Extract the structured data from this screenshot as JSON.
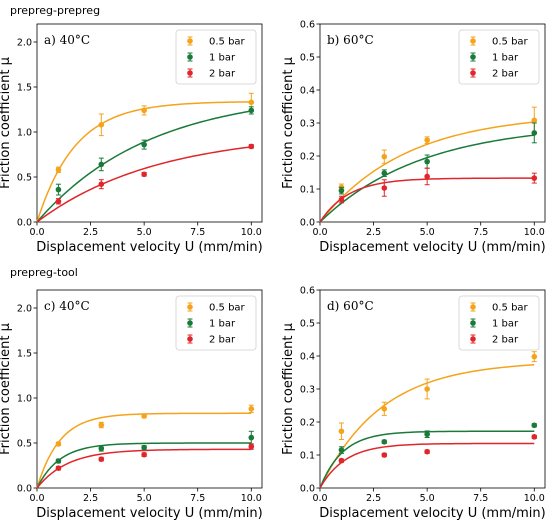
{
  "section_labels": [
    "prepreg-prepreg",
    "prepreg-tool"
  ],
  "chart_data": [
    {
      "type": "scatter",
      "panel_label": "a) 40°C",
      "xlabel": "Displacement velocity U (mm/min)",
      "ylabel": "Friction coefficient μ",
      "xlim": [
        0,
        10.5
      ],
      "ylim": [
        0,
        2.2
      ],
      "xticks": [
        "0.0",
        "2.5",
        "5.0",
        "7.5",
        "10.0"
      ],
      "yticks": [
        "0.0",
        "0.5",
        "1.0",
        "1.5",
        "2.0"
      ],
      "legend_position": "top-right",
      "series": [
        {
          "name": "0.5 bar",
          "color": "#f5a31a",
          "x": [
            1,
            3,
            5,
            10
          ],
          "y": [
            0.58,
            1.08,
            1.24,
            1.33
          ],
          "err": [
            0.03,
            0.12,
            0.05,
            0.1
          ],
          "fit_asymptote": 1.34,
          "fit_rate": 0.56
        },
        {
          "name": "1 bar",
          "color": "#1a7a3a",
          "x": [
            1,
            3,
            5,
            10
          ],
          "y": [
            0.36,
            0.64,
            0.86,
            1.24
          ],
          "err": [
            0.06,
            0.07,
            0.05,
            0.04
          ],
          "fit_asymptote": 1.45,
          "fit_rate": 0.19
        },
        {
          "name": "2 bar",
          "color": "#e0262a",
          "x": [
            1,
            3,
            5,
            10
          ],
          "y": [
            0.23,
            0.42,
            0.53,
            0.84
          ],
          "err": [
            0.03,
            0.05,
            0.02,
            0.02
          ],
          "fit_asymptote": 1.0,
          "fit_rate": 0.18
        }
      ]
    },
    {
      "type": "scatter",
      "panel_label": "b) 60°C",
      "xlabel": "Displacement velocity U (mm/min)",
      "ylabel": "Friction coefficient μ",
      "xlim": [
        0,
        10.5
      ],
      "ylim": [
        0,
        0.6
      ],
      "xticks": [
        "0.0",
        "2.5",
        "5.0",
        "7.5",
        "10.0"
      ],
      "yticks": [
        "0.0",
        "0.1",
        "0.2",
        "0.3",
        "0.4",
        "0.5",
        "0.6"
      ],
      "legend_position": "top-right",
      "series": [
        {
          "name": "0.5 bar",
          "color": "#f5a31a",
          "x": [
            1,
            3,
            5,
            10
          ],
          "y": [
            0.105,
            0.198,
            0.248,
            0.308
          ],
          "err": [
            0.01,
            0.02,
            0.01,
            0.04
          ],
          "fit_asymptote": 0.33,
          "fit_rate": 0.25
        },
        {
          "name": "1 bar",
          "color": "#1a7a3a",
          "x": [
            1,
            3,
            5,
            10
          ],
          "y": [
            0.095,
            0.148,
            0.183,
            0.27
          ],
          "err": [
            0.01,
            0.01,
            0.02,
            0.03
          ],
          "fit_asymptote": 0.3,
          "fit_rate": 0.21
        },
        {
          "name": "2 bar",
          "color": "#e0262a",
          "x": [
            1,
            3,
            5,
            10
          ],
          "y": [
            0.068,
            0.103,
            0.138,
            0.133
          ],
          "err": [
            0.01,
            0.025,
            0.025,
            0.015
          ],
          "fit_asymptote": 0.133,
          "fit_rate": 0.75
        }
      ]
    },
    {
      "type": "scatter",
      "panel_label": "c) 40°C",
      "xlabel": "Displacement velocity U (mm/min)",
      "ylabel": "Friction coefficient μ",
      "xlim": [
        0,
        10.5
      ],
      "ylim": [
        0,
        2.2
      ],
      "xticks": [
        "0.0",
        "2.5",
        "5.0",
        "7.5",
        "10.0"
      ],
      "yticks": [
        "0.0",
        "0.5",
        "1.0",
        "1.5",
        "2.0"
      ],
      "legend_position": "top-right",
      "series": [
        {
          "name": "0.5 bar",
          "color": "#f5a31a",
          "x": [
            1,
            3,
            5,
            10
          ],
          "y": [
            0.49,
            0.7,
            0.8,
            0.88
          ],
          "err": [
            0.02,
            0.03,
            0.02,
            0.04
          ],
          "fit_asymptote": 0.83,
          "fit_rate": 0.95
        },
        {
          "name": "1 bar",
          "color": "#1a7a3a",
          "x": [
            1,
            3,
            5,
            10
          ],
          "y": [
            0.3,
            0.44,
            0.45,
            0.56
          ],
          "err": [
            0.02,
            0.03,
            0.02,
            0.07
          ],
          "fit_asymptote": 0.5,
          "fit_rate": 0.95
        },
        {
          "name": "2 bar",
          "color": "#e0262a",
          "x": [
            1,
            3,
            5,
            10
          ],
          "y": [
            0.22,
            0.32,
            0.37,
            0.46
          ],
          "err": [
            0.02,
            0.02,
            0.02,
            0.03
          ],
          "fit_asymptote": 0.43,
          "fit_rate": 0.7
        }
      ]
    },
    {
      "type": "scatter",
      "panel_label": "d) 60°C",
      "xlabel": "Displacement velocity U (mm/min)",
      "ylabel": "Friction coefficient μ",
      "xlim": [
        0,
        10.5
      ],
      "ylim": [
        0,
        0.6
      ],
      "xticks": [
        "0.0",
        "2.5",
        "5.0",
        "7.5",
        "10.0"
      ],
      "yticks": [
        "0.0",
        "0.1",
        "0.2",
        "0.3",
        "0.4",
        "0.5",
        "0.6"
      ],
      "legend_position": "top-right",
      "series": [
        {
          "name": "0.5 bar",
          "color": "#f5a31a",
          "x": [
            1,
            3,
            5,
            10
          ],
          "y": [
            0.172,
            0.24,
            0.3,
            0.398
          ],
          "err": [
            0.025,
            0.02,
            0.03,
            0.015
          ],
          "fit_asymptote": 0.385,
          "fit_rate": 0.35
        },
        {
          "name": "1 bar",
          "color": "#1a7a3a",
          "x": [
            1,
            3,
            5,
            10
          ],
          "y": [
            0.115,
            0.14,
            0.163,
            0.19
          ],
          "err": [
            0.01,
            0.005,
            0.01,
            0.005
          ],
          "fit_asymptote": 0.172,
          "fit_rate": 0.95
        },
        {
          "name": "2 bar",
          "color": "#e0262a",
          "x": [
            1,
            3,
            5,
            10
          ],
          "y": [
            0.083,
            0.1,
            0.11,
            0.155
          ],
          "err": [
            0.005,
            0.005,
            0.005,
            0.005
          ],
          "fit_asymptote": 0.135,
          "fit_rate": 0.85
        }
      ]
    }
  ]
}
